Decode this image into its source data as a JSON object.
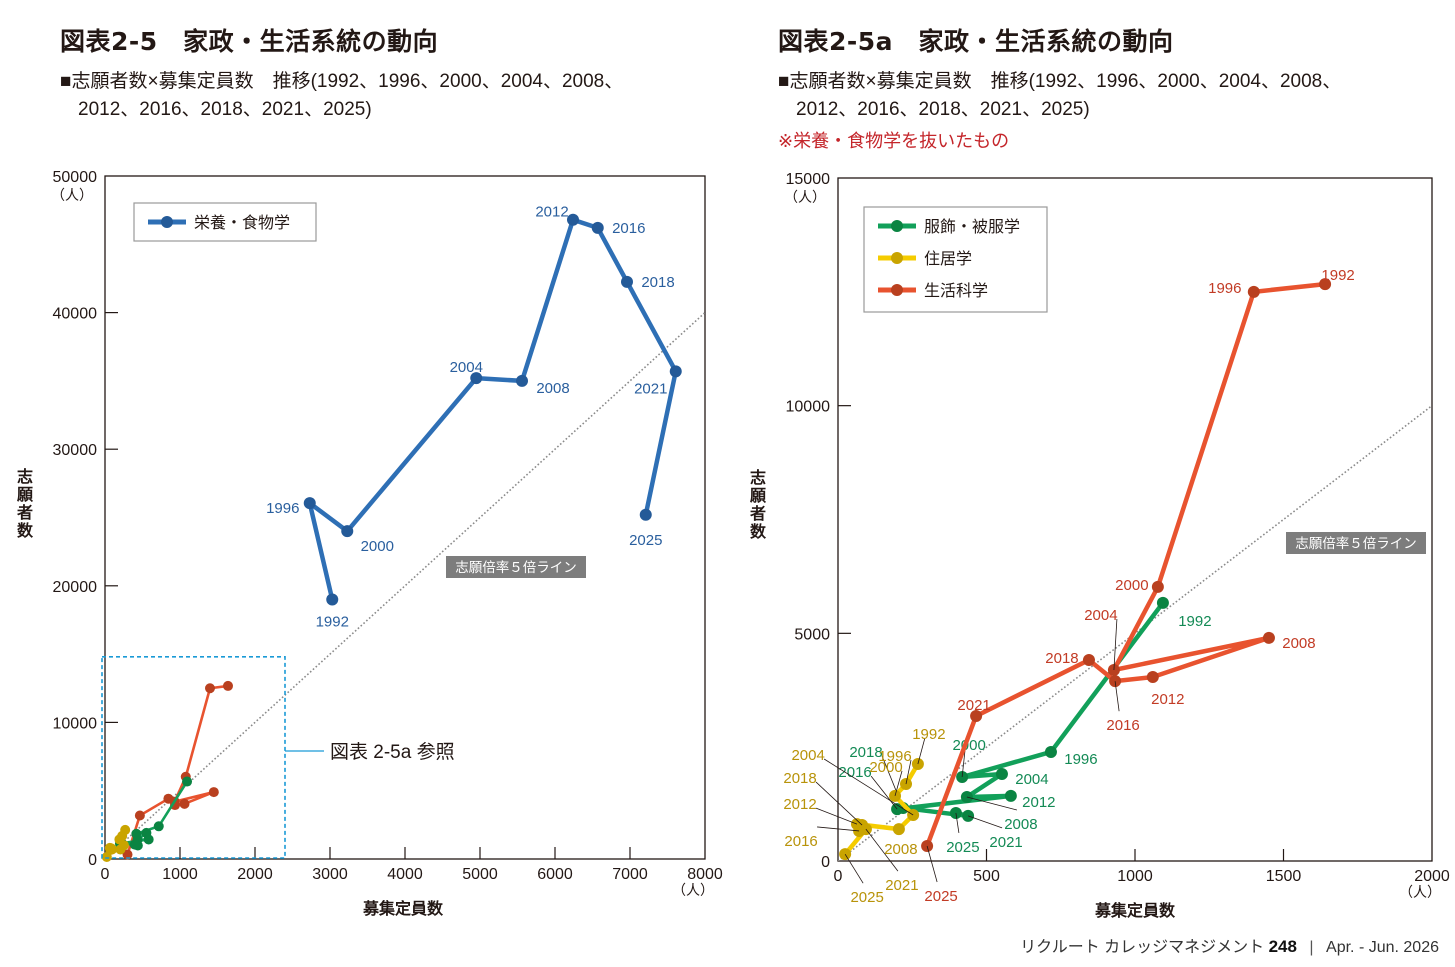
{
  "page": {
    "footer": {
      "publication": "リクルート カレッジマネジメント",
      "issue": "248",
      "separator": "|",
      "date": "Apr. - Jun. 2026"
    }
  },
  "chart_data": [
    {
      "type": "line",
      "id": "fig2-5",
      "title": "図表2-5　家政・生活系統の動向",
      "subtitle_line1": "■志願者数×募集定員数　推移(1992、1996、2000、2004、2008、",
      "subtitle_line2": "2012、2016、2018、2021、2025)",
      "xlabel": "募集定員数",
      "ylabel": "志願者数",
      "x_unit": "（人）",
      "y_unit": "（人）",
      "xlim": [
        0,
        8000
      ],
      "ylim": [
        0,
        50000
      ],
      "x_ticks": [
        0,
        1000,
        2000,
        3000,
        4000,
        5000,
        6000,
        7000,
        8000
      ],
      "y_ticks": [
        0,
        10000,
        20000,
        30000,
        40000,
        50000
      ],
      "grid": false,
      "legend": {
        "position": "top-left",
        "entries": [
          "栄養・食物学"
        ]
      },
      "reference_line": {
        "label": "志願倍率５倍ライン",
        "ratio": 5
      },
      "inset_annotation": {
        "label": "図表 2-5a 参照",
        "x_range": [
          0,
          2400
        ],
        "y_range": [
          0,
          14800
        ]
      },
      "series": [
        {
          "name": "栄養・食物学",
          "color": "#2e6fb5",
          "marker_color": "#245a98",
          "label_color": "#2a5f9e",
          "labeled": true,
          "points": [
            {
              "year": "1992",
              "x": 3030,
              "y": 19000
            },
            {
              "year": "1996",
              "x": 2730,
              "y": 26050
            },
            {
              "year": "2000",
              "x": 3230,
              "y": 24000
            },
            {
              "year": "2004",
              "x": 4950,
              "y": 35200
            },
            {
              "year": "2008",
              "x": 5560,
              "y": 35000
            },
            {
              "year": "2012",
              "x": 6240,
              "y": 46800
            },
            {
              "year": "2016",
              "x": 6570,
              "y": 46200
            },
            {
              "year": "2018",
              "x": 6960,
              "y": 42250
            },
            {
              "year": "2021",
              "x": 7610,
              "y": 35700
            },
            {
              "year": "2025",
              "x": 7210,
              "y": 25200
            }
          ]
        },
        {
          "name": "生活科学",
          "color": "#e8532f",
          "marker_color": "#b9401f",
          "labeled": false,
          "points": [
            {
              "year": "1992",
              "x": 1640,
              "y": 12670
            },
            {
              "year": "1996",
              "x": 1400,
              "y": 12500
            },
            {
              "year": "2000",
              "x": 1077,
              "y": 6020
            },
            {
              "year": "2004",
              "x": 929,
              "y": 4195
            },
            {
              "year": "2008",
              "x": 1451,
              "y": 4900
            },
            {
              "year": "2012",
              "x": 1060,
              "y": 4040
            },
            {
              "year": "2016",
              "x": 933,
              "y": 3950
            },
            {
              "year": "2018",
              "x": 845,
              "y": 4415
            },
            {
              "year": "2021",
              "x": 465,
              "y": 3185
            },
            {
              "year": "2025",
              "x": 300,
              "y": 330
            }
          ]
        },
        {
          "name": "服飾・被服学",
          "color": "#12a05a",
          "marker_color": "#0a8442",
          "labeled": false,
          "points": [
            {
              "year": "1992",
              "x": 1094,
              "y": 5670
            },
            {
              "year": "1996",
              "x": 717,
              "y": 2395
            },
            {
              "year": "2000",
              "x": 418,
              "y": 1845
            },
            {
              "year": "2004",
              "x": 552,
              "y": 1910
            },
            {
              "year": "2008",
              "x": 434,
              "y": 1405
            },
            {
              "year": "2012",
              "x": 582,
              "y": 1430
            },
            {
              "year": "2016",
              "x": 199,
              "y": 1140
            },
            {
              "year": "2018",
              "x": 219,
              "y": 1165
            },
            {
              "year": "2021",
              "x": 438,
              "y": 990
            },
            {
              "year": "2025",
              "x": 397,
              "y": 1055
            }
          ]
        },
        {
          "name": "住居学",
          "color": "#f5cc00",
          "marker_color": "#c9a400",
          "labeled": false,
          "points": [
            {
              "year": "1992",
              "x": 269,
              "y": 2130
            },
            {
              "year": "1996",
              "x": 229,
              "y": 1690
            },
            {
              "year": "2000",
              "x": 192,
              "y": 1430
            },
            {
              "year": "2004",
              "x": 253,
              "y": 1010
            },
            {
              "year": "2008",
              "x": 205,
              "y": 700
            },
            {
              "year": "2012",
              "x": 64,
              "y": 810
            },
            {
              "year": "2016",
              "x": 71,
              "y": 660
            },
            {
              "year": "2018",
              "x": 81,
              "y": 790
            },
            {
              "year": "2021",
              "x": 94,
              "y": 700
            },
            {
              "year": "2025",
              "x": 24,
              "y": 150
            }
          ]
        }
      ]
    },
    {
      "type": "line",
      "id": "fig2-5a",
      "title": "図表2-5a　家政・生活系統の動向",
      "subtitle_line1": "■志願者数×募集定員数　推移(1992、1996、2000、2004、2008、",
      "subtitle_line2": "2012、2016、2018、2021、2025)",
      "note": "※栄養・食物学を抜いたもの",
      "xlabel": "募集定員数",
      "ylabel": "志願者数",
      "x_unit": "（人）",
      "y_unit": "（人）",
      "xlim": [
        0,
        2000
      ],
      "ylim": [
        0,
        15000
      ],
      "x_ticks": [
        0,
        500,
        1000,
        1500,
        2000
      ],
      "y_ticks": [
        0,
        5000,
        10000,
        15000
      ],
      "grid": false,
      "legend": {
        "position": "top-left",
        "entries": [
          "服飾・被服学",
          "住居学",
          "生活科学"
        ]
      },
      "reference_line": {
        "label": "志願倍率５倍ライン",
        "ratio": 5
      },
      "series": [
        {
          "name": "服飾・被服学",
          "color": "#12a05a",
          "marker_color": "#0a8442",
          "label_color": "#138a55",
          "points": [
            {
              "year": "1992",
              "x": 1094,
              "y": 5670
            },
            {
              "year": "1996",
              "x": 717,
              "y": 2395
            },
            {
              "year": "2000",
              "x": 418,
              "y": 1845
            },
            {
              "year": "2004",
              "x": 552,
              "y": 1910
            },
            {
              "year": "2008",
              "x": 434,
              "y": 1405
            },
            {
              "year": "2012",
              "x": 582,
              "y": 1430
            },
            {
              "year": "2016",
              "x": 199,
              "y": 1140
            },
            {
              "year": "2018",
              "x": 219,
              "y": 1165
            },
            {
              "year": "2021",
              "x": 438,
              "y": 990
            },
            {
              "year": "2025",
              "x": 397,
              "y": 1055
            }
          ]
        },
        {
          "name": "住居学",
          "color": "#f5cc00",
          "marker_color": "#c9a400",
          "label_color": "#b8930a",
          "points": [
            {
              "year": "1992",
              "x": 269,
              "y": 2130
            },
            {
              "year": "1996",
              "x": 229,
              "y": 1690
            },
            {
              "year": "2000",
              "x": 192,
              "y": 1430
            },
            {
              "year": "2004",
              "x": 253,
              "y": 1010
            },
            {
              "year": "2008",
              "x": 205,
              "y": 700
            },
            {
              "year": "2012",
              "x": 64,
              "y": 810
            },
            {
              "year": "2016",
              "x": 71,
              "y": 660
            },
            {
              "year": "2018",
              "x": 81,
              "y": 790
            },
            {
              "year": "2021",
              "x": 94,
              "y": 700
            },
            {
              "year": "2025",
              "x": 24,
              "y": 150
            }
          ]
        },
        {
          "name": "生活科学",
          "color": "#e8532f",
          "marker_color": "#b9401f",
          "label_color": "#c23b25",
          "points": [
            {
              "year": "1992",
              "x": 1640,
              "y": 12670
            },
            {
              "year": "1996",
              "x": 1400,
              "y": 12500
            },
            {
              "year": "2000",
              "x": 1077,
              "y": 6020
            },
            {
              "year": "2004",
              "x": 929,
              "y": 4195
            },
            {
              "year": "2008",
              "x": 1451,
              "y": 4900
            },
            {
              "year": "2012",
              "x": 1060,
              "y": 4040
            },
            {
              "year": "2016",
              "x": 933,
              "y": 3950
            },
            {
              "year": "2018",
              "x": 845,
              "y": 4415
            },
            {
              "year": "2021",
              "x": 465,
              "y": 3185
            },
            {
              "year": "2025",
              "x": 300,
              "y": 330
            }
          ]
        }
      ]
    }
  ]
}
